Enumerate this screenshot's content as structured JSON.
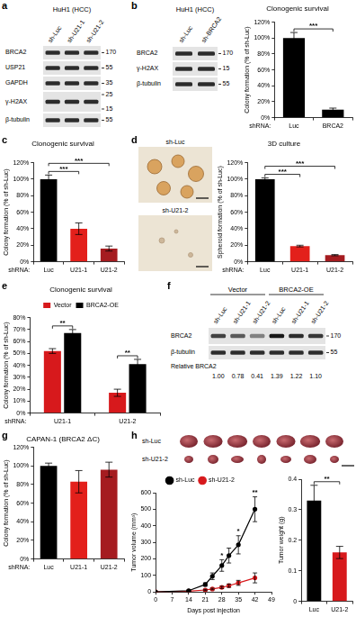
{
  "panel_labels": [
    "a",
    "b",
    "c",
    "d",
    "e",
    "f",
    "g",
    "h"
  ],
  "blots": [
    {
      "title": "HuH1 (HCC)",
      "lanes": [
        "sh-Luc",
        "sh-U21-1",
        "sh-U21-2"
      ],
      "rows": [
        {
          "name": "BRCA2",
          "markers": [
            170
          ]
        },
        {
          "name": "USP21",
          "markers": [
            55
          ]
        },
        {
          "name": "GAPDH",
          "markers": [
            35
          ]
        },
        {
          "name": "γ-H2AX",
          "markers": [
            25,
            15
          ]
        },
        {
          "name": "β-tubulin",
          "markers": [
            55
          ]
        }
      ]
    },
    {
      "title": "HuH1 (HCC)",
      "lanes": [
        "sh-Luc",
        "sh-BRCA2"
      ],
      "rows": [
        {
          "name": "BRCA2",
          "markers": [
            170
          ]
        },
        {
          "name": "γ-H2AX",
          "markers": [
            15
          ]
        },
        {
          "name": "β-tubulin",
          "markers": [
            55
          ]
        }
      ]
    },
    {
      "groups": [
        {
          "name": "Vector",
          "lanes": [
            "sh-Luc",
            "sh-U21-1",
            "sh-U21-2"
          ]
        },
        {
          "name": "BRCA2-OE",
          "lanes": [
            "sh-Luc",
            "sh-U21-1",
            "sh-U21-2"
          ]
        }
      ],
      "rows": [
        {
          "name": "BRCA2",
          "markers": [
            170
          ]
        },
        {
          "name": "β-tubulin",
          "markers": [
            55
          ]
        }
      ],
      "relative": {
        "label": "Relative BRCA2",
        "values": [
          1.0,
          0.78,
          0.41,
          1.39,
          1.22,
          1.1
        ],
        "value_labels": [
          "1.00",
          "0.78",
          "0.41",
          "1.39",
          "1.22",
          "1.10"
        ]
      }
    }
  ],
  "images": [
    {
      "labels": [
        "sh-Luc",
        "sh-U21-2"
      ]
    },
    {
      "labels": [
        "sh-Luc",
        "sh-U21-2"
      ]
    }
  ],
  "chart_data": [
    {
      "type": "bar",
      "title": "Clonogenic survival",
      "y_label": "Colony formation (% of sh-Luc)",
      "x_label": "shRNA:",
      "categories": [
        "Luc",
        "BRCA2"
      ],
      "values": [
        100,
        10
      ],
      "errors": [
        7,
        2
      ],
      "colors": [
        "#000000",
        "#000000"
      ],
      "ylim": [
        0,
        120
      ],
      "yticks": [
        {
          "value": 0,
          "label": "0%"
        },
        {
          "value": 20,
          "label": "20%"
        },
        {
          "value": 40,
          "label": "40%"
        },
        {
          "value": 60,
          "label": "60%"
        },
        {
          "value": 80,
          "label": "80%"
        },
        {
          "value": 100,
          "label": "100%"
        },
        {
          "value": 120,
          "label": "120%"
        }
      ],
      "grid": false,
      "annotations": [
        {
          "text": "***",
          "between": [
            0,
            1
          ]
        }
      ]
    },
    {
      "type": "bar",
      "title": "Clonogenic survival",
      "y_label": "Colony formation (% of sh-Luc)",
      "x_label": "shRNA:",
      "categories": [
        "Luc",
        "U21-1",
        "U21-2"
      ],
      "values": [
        100,
        40,
        16
      ],
      "errors": [
        5,
        7,
        3
      ],
      "colors": [
        "#000000",
        "#e3201b",
        "#a51c20"
      ],
      "ylim": [
        0,
        120
      ],
      "yticks": [
        {
          "value": 0,
          "label": "0%"
        },
        {
          "value": 20,
          "label": "20%"
        },
        {
          "value": 40,
          "label": "40%"
        },
        {
          "value": 60,
          "label": "60%"
        },
        {
          "value": 80,
          "label": "80%"
        },
        {
          "value": 100,
          "label": "100%"
        },
        {
          "value": 120,
          "label": "120%"
        }
      ],
      "grid": false,
      "annotations": [
        {
          "text": "***",
          "between": [
            0,
            1
          ]
        },
        {
          "text": "***",
          "between": [
            0,
            2
          ]
        }
      ]
    },
    {
      "type": "bar",
      "title": "3D culture",
      "y_label": "Spheroid formation (% of sh-Luc)",
      "x_label": "shRNA:",
      "categories": [
        "Luc",
        "U21-1",
        "U21-2"
      ],
      "values": [
        100,
        19,
        8
      ],
      "errors": [
        1.5,
        1,
        0.7
      ],
      "colors": [
        "#000000",
        "#e3201b",
        "#a51c20"
      ],
      "ylim": [
        0,
        120
      ],
      "yticks": [
        {
          "value": 0,
          "label": "0%"
        },
        {
          "value": 20,
          "label": "20%"
        },
        {
          "value": 40,
          "label": "40%"
        },
        {
          "value": 60,
          "label": "60%"
        },
        {
          "value": 80,
          "label": "80%"
        },
        {
          "value": 100,
          "label": "100%"
        },
        {
          "value": 120,
          "label": "120%"
        }
      ],
      "grid": false,
      "annotations": [
        {
          "text": "***",
          "between": [
            0,
            1
          ]
        },
        {
          "text": "***",
          "between": [
            0,
            2
          ]
        }
      ]
    },
    {
      "type": "bar",
      "title": "Clonogenic survival",
      "y_label": "Colony formation (% of sh-Luc)",
      "x_label": "shRNA:",
      "categories": [
        "U21-1",
        "U21-2"
      ],
      "series": [
        {
          "name": "Vector",
          "color": "#d7191c",
          "values": [
            52,
            17
          ],
          "errors": [
            2,
            3
          ]
        },
        {
          "name": "BRCA2-OE",
          "color": "#000000",
          "values": [
            67,
            41
          ],
          "errors": [
            3,
            4
          ]
        }
      ],
      "ylim": [
        0,
        80
      ],
      "yticks": [
        {
          "value": 0,
          "label": "0%"
        },
        {
          "value": 10,
          "label": "10%"
        },
        {
          "value": 20,
          "label": "20%"
        },
        {
          "value": 30,
          "label": "30%"
        },
        {
          "value": 40,
          "label": "40%"
        },
        {
          "value": 50,
          "label": "50%"
        },
        {
          "value": 60,
          "label": "60%"
        },
        {
          "value": 70,
          "label": "70%"
        },
        {
          "value": 80,
          "label": "80%"
        }
      ],
      "legend": "top",
      "grid": false,
      "annotations": [
        {
          "text": "**",
          "category": 0
        },
        {
          "text": "**",
          "category": 1
        }
      ]
    },
    {
      "type": "bar",
      "title": "CAPAN-1 (BRCA2 ΔC)",
      "y_label": "Colony formation (% of sh-Luc)",
      "x_label": "shRNA:",
      "categories": [
        "Luc",
        "U21-1",
        "U21-2"
      ],
      "values": [
        100,
        83,
        96
      ],
      "errors": [
        3,
        12,
        8
      ],
      "colors": [
        "#000000",
        "#e3201b",
        "#a51c20"
      ],
      "ylim": [
        0,
        120
      ],
      "yticks": [
        {
          "value": 0,
          "label": "0%"
        },
        {
          "value": 20,
          "label": "20%"
        },
        {
          "value": 40,
          "label": "40%"
        },
        {
          "value": 60,
          "label": "60%"
        },
        {
          "value": 80,
          "label": "80%"
        },
        {
          "value": 100,
          "label": "100%"
        },
        {
          "value": 120,
          "label": "120%"
        }
      ],
      "grid": false
    },
    {
      "type": "line",
      "x_label": "Days post injection",
      "y_label": "Tumor volume (mm³)",
      "x": [
        0,
        14,
        21,
        24,
        28,
        31,
        35,
        42
      ],
      "series": [
        {
          "name": "sh-Luc",
          "color": "#000000",
          "marker": "circle",
          "line_style": "solid",
          "values": [
            0,
            8,
            45,
            95,
            160,
            220,
            285,
            500
          ],
          "errors": [
            0,
            3,
            10,
            20,
            35,
            45,
            55,
            75
          ]
        },
        {
          "name": "sh-U21-2",
          "color": "#d7191c",
          "marker": "circle",
          "line_style": "solid",
          "values": [
            0,
            4,
            12,
            18,
            28,
            38,
            55,
            85
          ],
          "errors": [
            0,
            2,
            4,
            5,
            7,
            10,
            15,
            30
          ]
        }
      ],
      "xlim": [
        0,
        49
      ],
      "xticks": [
        0,
        7,
        14,
        21,
        28,
        35,
        42,
        49
      ],
      "ylim": [
        0,
        600
      ],
      "yticks": [
        0,
        100,
        200,
        300,
        400,
        500,
        600
      ],
      "legend": "top",
      "grid": false,
      "annotations": [
        {
          "text": "*",
          "x": 28
        },
        {
          "text": "*",
          "x": 35
        },
        {
          "text": "**",
          "x": 42
        }
      ]
    },
    {
      "type": "bar",
      "y_label": "Tumor weight (g)",
      "categories": [
        "Luc",
        "U21-2"
      ],
      "values": [
        0.33,
        0.16
      ],
      "errors": [
        0.05,
        0.02
      ],
      "colors": [
        "#000000",
        "#d7191c"
      ],
      "ylim": [
        0,
        0.4
      ],
      "yticks": [
        0,
        0.1,
        0.2,
        0.3,
        0.4
      ],
      "grid": false,
      "annotations": [
        {
          "text": "**",
          "between": [
            0,
            1
          ]
        }
      ]
    }
  ]
}
